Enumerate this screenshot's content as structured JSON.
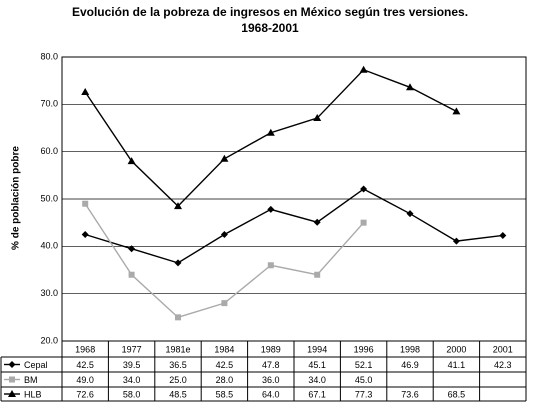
{
  "chart_data": {
    "type": "line",
    "title": "Evolución de la pobreza de ingresos en México según tres versiones.",
    "subtitle": "1968-2001",
    "y_label": "% de población pobre",
    "categories": [
      "1968",
      "1977",
      "1981e",
      "1984",
      "1989",
      "1994",
      "1996",
      "1998",
      "2000",
      "2001"
    ],
    "series": [
      {
        "name": "Cepal",
        "color": "#000000",
        "marker": "diamond",
        "values": [
          42.5,
          39.5,
          36.5,
          42.5,
          47.8,
          45.1,
          52.1,
          46.9,
          41.1,
          42.3
        ],
        "value_labels": [
          "42.5",
          "39.5",
          "36.5",
          "42.5",
          "47.8",
          "45.1",
          "52.1",
          "46.9",
          "41.1",
          "42.3"
        ]
      },
      {
        "name": "BM",
        "color": "#aaaaaa",
        "marker": "square",
        "values": [
          49,
          34,
          25,
          28,
          36,
          34,
          45,
          null,
          null,
          null
        ],
        "value_labels": [
          "49.0",
          "34.0",
          "25.0",
          "28.0",
          "36.0",
          "34.0",
          "45.0",
          null,
          null,
          null
        ]
      },
      {
        "name": "HLB",
        "color": "#000000",
        "marker": "triangle",
        "values": [
          72.6,
          58,
          48.5,
          58.5,
          64,
          67.1,
          77.3,
          73.6,
          68.5,
          null
        ],
        "value_labels": [
          "72.6",
          "58.0",
          "48.5",
          "58.5",
          "64.0",
          "67.1",
          "77.3",
          "73.6",
          "68.5",
          null
        ]
      }
    ],
    "ylim": [
      20,
      80
    ],
    "yticks": [
      {
        "value": 20,
        "label": "20.0"
      },
      {
        "value": 30,
        "label": "30.0"
      },
      {
        "value": 40,
        "label": "40.0"
      },
      {
        "value": 50,
        "label": "50.0"
      },
      {
        "value": 60,
        "label": "60.0"
      },
      {
        "value": 70,
        "label": "70.0"
      },
      {
        "value": 80,
        "label": "80.0"
      }
    ],
    "grid": true
  }
}
